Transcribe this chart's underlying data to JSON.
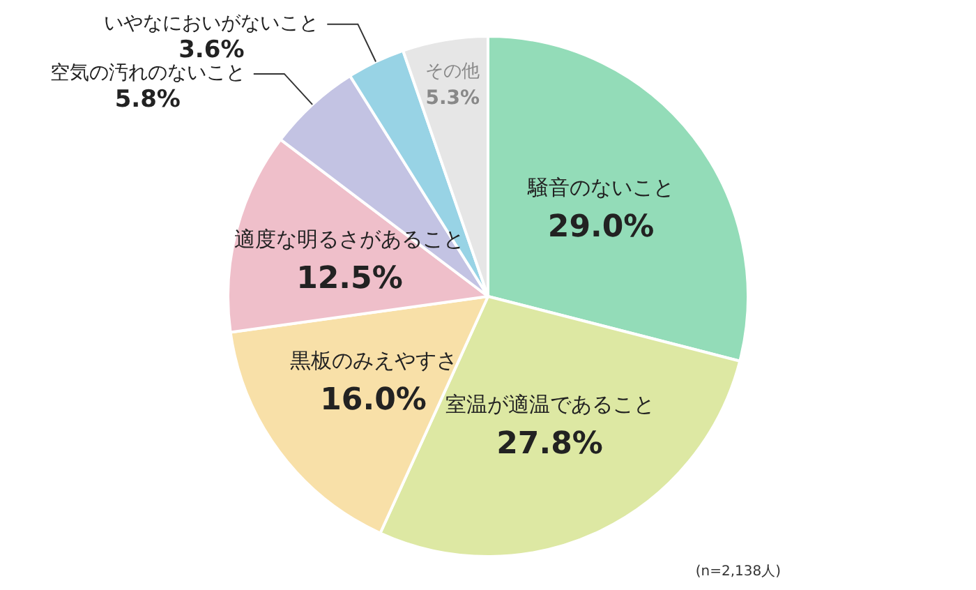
{
  "chart_data": {
    "type": "pie",
    "categories": [
      "騒音のないこと",
      "室温が適温であること",
      "黒板のみえやすさ",
      "適度な明るさがあること",
      "空気の汚れのないこと",
      "いやなにおいがないこと",
      "その他"
    ],
    "values": [
      29.0,
      27.8,
      16.0,
      12.5,
      5.8,
      3.6,
      5.3
    ],
    "value_labels": [
      "29.0%",
      "27.8%",
      "16.0%",
      "12.5%",
      "5.8%",
      "3.6%",
      "5.3%"
    ],
    "colors": [
      "#93dcb8",
      "#dde8a3",
      "#f8e0a8",
      "#efbfca",
      "#c3c3e3",
      "#98d3e5",
      "#e6e6e6"
    ],
    "annotations": [
      "(n=2,138人)"
    ],
    "legend": false
  }
}
